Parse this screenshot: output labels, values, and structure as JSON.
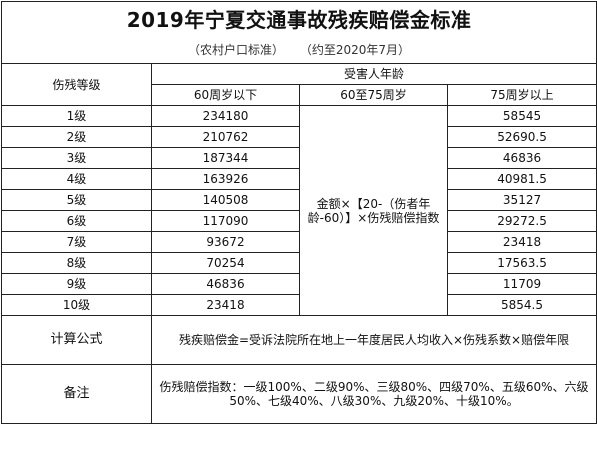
{
  "title": "2019年宁夏交通事故残疾赔偿金标准",
  "subtitle_left": "（农村户口标准）",
  "subtitle_right": "（约至2020年7月）",
  "headers": {
    "grade": "伤残等级",
    "age_group": "受害人年龄",
    "col_under60": "60周岁以下",
    "col_60to75": "60至75周岁",
    "col_over75": "75周岁以上"
  },
  "rows": [
    {
      "grade": "1级",
      "under60": "234180",
      "over75": "58545"
    },
    {
      "grade": "2级",
      "under60": "210762",
      "over75": "52690.5"
    },
    {
      "grade": "3级",
      "under60": "187344",
      "over75": "46836"
    },
    {
      "grade": "4级",
      "under60": "163926",
      "over75": "40981.5"
    },
    {
      "grade": "5级",
      "under60": "140508",
      "over75": "35127"
    },
    {
      "grade": "6级",
      "under60": "117090",
      "over75": "29272.5"
    },
    {
      "grade": "7级",
      "under60": "93672",
      "over75": "23418"
    },
    {
      "grade": "8级",
      "under60": "70254",
      "over75": "17563.5"
    },
    {
      "grade": "9级",
      "under60": "46836",
      "over75": "11709"
    },
    {
      "grade": "10级",
      "under60": "23418",
      "over75": "5854.5"
    }
  ],
  "mid_formula": "金额×【20-（伤者年龄-60）】×伤残赔偿指数",
  "calc_label": "计算公式",
  "calc_text": "残疾赔偿金=受诉法院所在地上一年度居民人均收入×伤残系数×赔偿年限",
  "note_label": "备注",
  "note_text": "伤残赔偿指数：一级100%、二级90%、三级80%、四级70%、五级60%、六级50%、七级40%、八级30%、九级20%、十级10%。"
}
